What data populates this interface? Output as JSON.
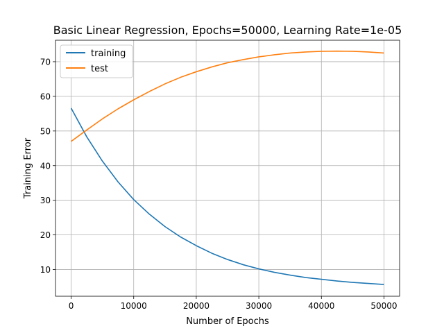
{
  "chart_data": {
    "type": "line",
    "title": "Basic Linear Regression, Epochs=50000, Learning Rate=1e-05",
    "xlabel": "Number of Epochs",
    "ylabel": "Training Error",
    "xlim": [
      -2500,
      52500
    ],
    "ylim": [
      2.3,
      76.2
    ],
    "xticks": [
      0,
      10000,
      20000,
      30000,
      40000,
      50000
    ],
    "yticks": [
      10,
      20,
      30,
      40,
      50,
      60,
      70
    ],
    "grid": true,
    "legend_position": "top-left",
    "x": [
      0,
      2500,
      5000,
      7500,
      10000,
      12500,
      15000,
      17500,
      20000,
      22500,
      25000,
      27500,
      30000,
      32500,
      35000,
      37500,
      40000,
      42500,
      45000,
      47500,
      50000
    ],
    "series": [
      {
        "name": "training",
        "color": "#1f77b4",
        "values": [
          56.6,
          48.3,
          41.3,
          35.3,
          30.2,
          26.0,
          22.4,
          19.4,
          16.9,
          14.7,
          12.9,
          11.4,
          10.2,
          9.2,
          8.4,
          7.7,
          7.2,
          6.7,
          6.3,
          6.0,
          5.7
        ]
      },
      {
        "name": "test",
        "color": "#ff7f0e",
        "values": [
          47.0,
          50.3,
          53.5,
          56.4,
          59.0,
          61.4,
          63.6,
          65.5,
          67.1,
          68.5,
          69.7,
          70.6,
          71.4,
          72.0,
          72.5,
          72.8,
          73.0,
          73.05,
          73.0,
          72.8,
          72.5
        ]
      }
    ]
  }
}
